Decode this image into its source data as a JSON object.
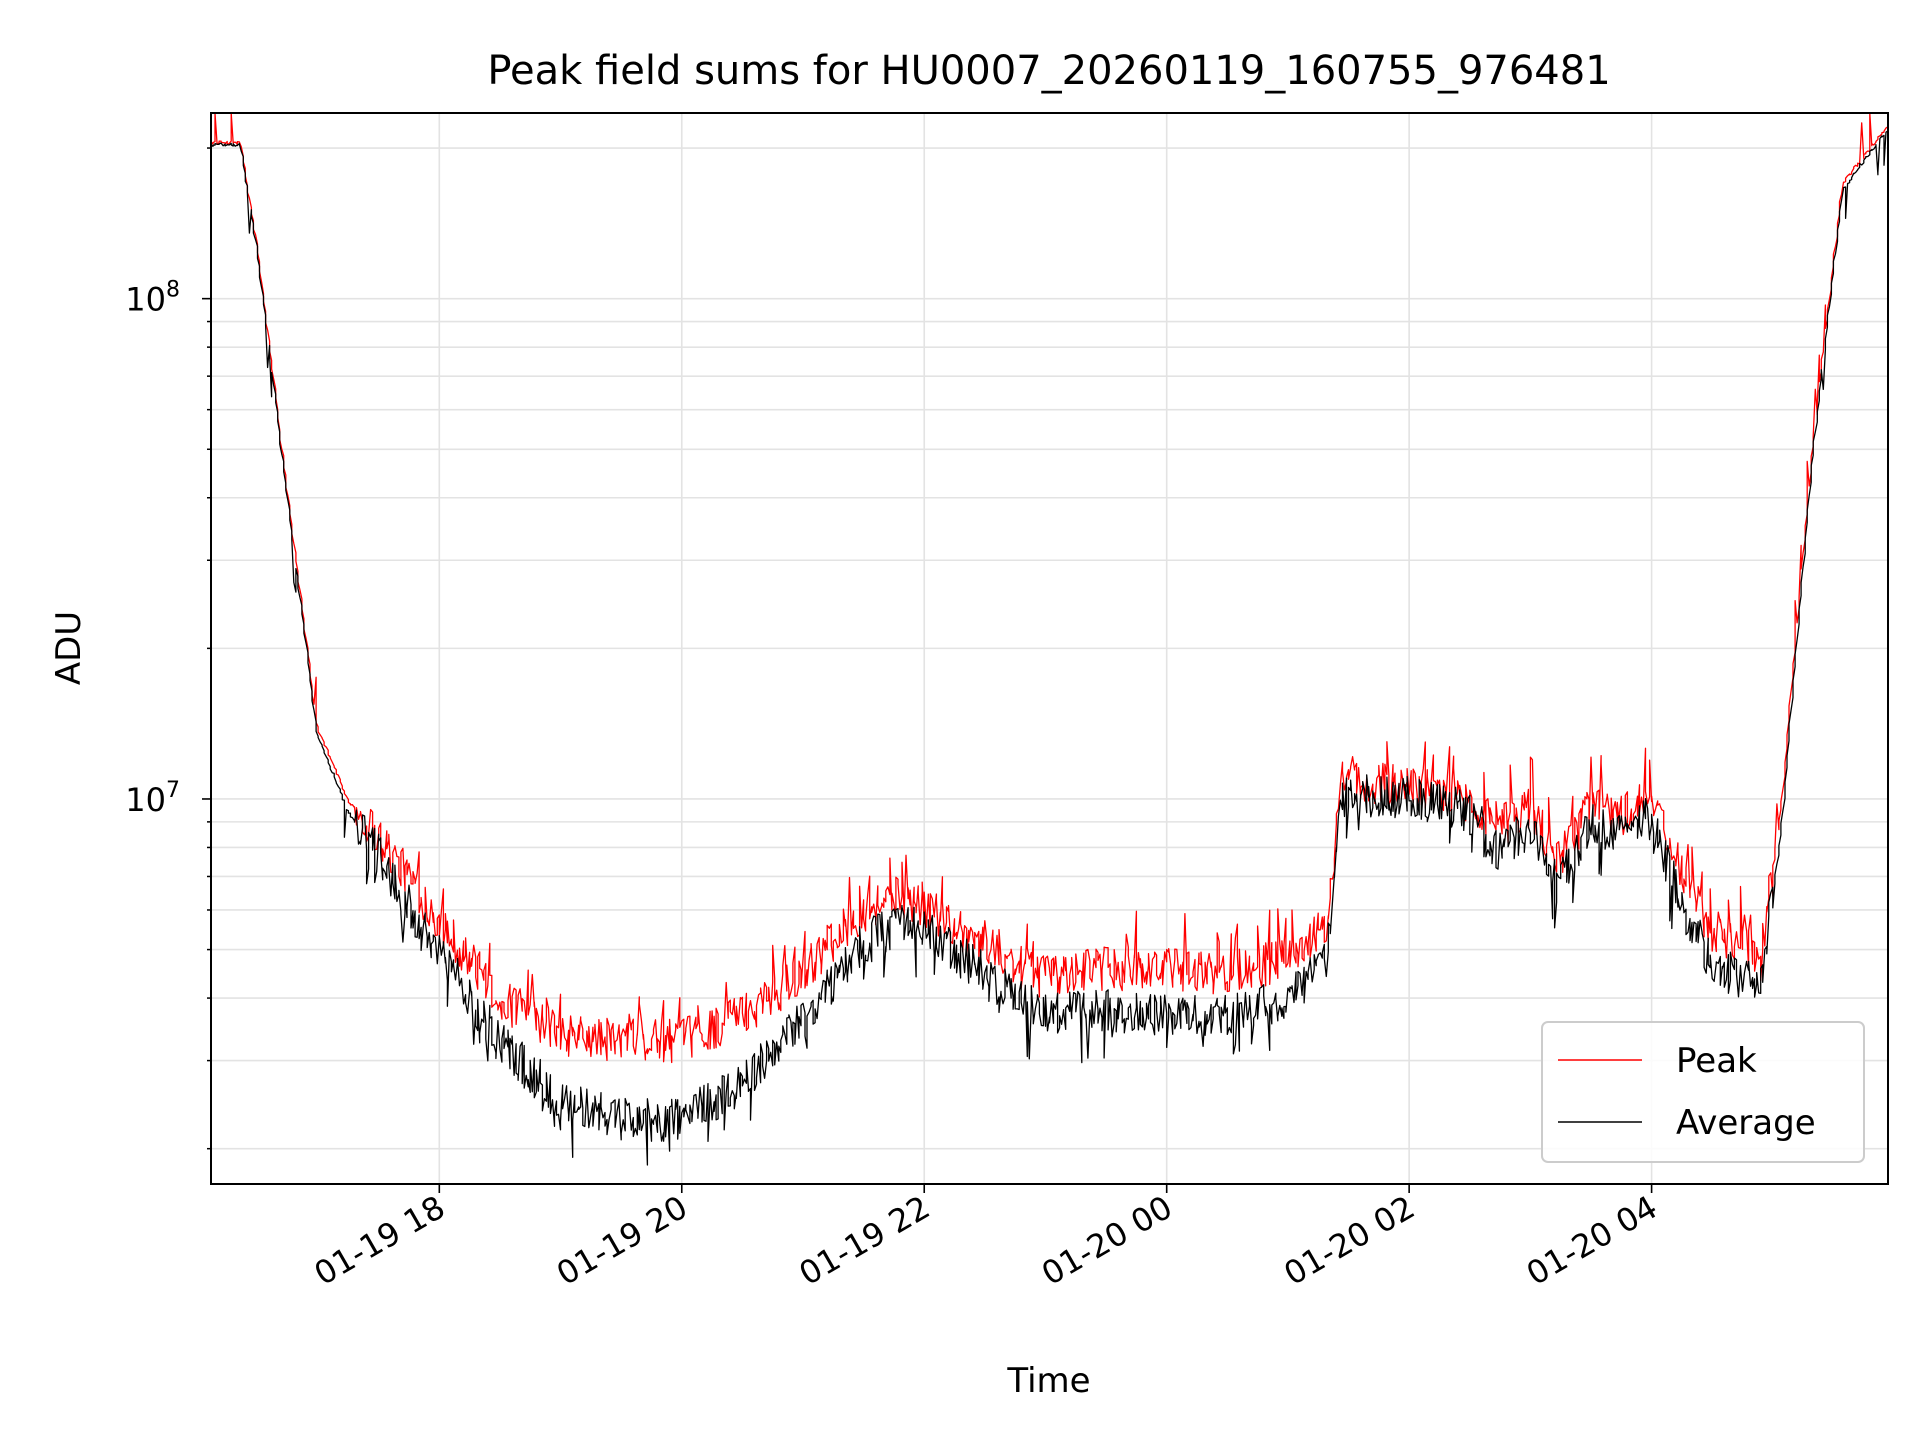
{
  "chart_data": {
    "type": "line",
    "title": "Peak field sums for HU0007_20260119_160755_976481",
    "xlabel": "Time",
    "ylabel": "ADU",
    "yscale": "log",
    "ylim": [
      1700000.0,
      235000000.0
    ],
    "xlim": [
      "2026-01-19 16:07",
      "2026-01-20 05:57"
    ],
    "grid": true,
    "legend_position": "lower-right",
    "x_ticks": [
      {
        "x": "2026-01-19 18:00",
        "label": "01-19 18"
      },
      {
        "x": "2026-01-19 20:00",
        "label": "01-19 20"
      },
      {
        "x": "2026-01-19 22:00",
        "label": "01-19 22"
      },
      {
        "x": "2026-01-20 00:00",
        "label": "01-20 00"
      },
      {
        "x": "2026-01-20 02:00",
        "label": "01-20 02"
      },
      {
        "x": "2026-01-20 04:00",
        "label": "01-20 04"
      }
    ],
    "y_ticks": [
      {
        "value": 10000000,
        "base": "10",
        "exp": "7"
      },
      {
        "value": 100000000,
        "base": "10",
        "exp": "8"
      }
    ],
    "series": [
      {
        "name": "Peak",
        "color": "#ff0000",
        "x": [
          "2026-01-19 16:07",
          "2026-01-19 16:22",
          "2026-01-19 16:30",
          "2026-01-19 16:45",
          "2026-01-19 17:00",
          "2026-01-19 17:15",
          "2026-01-19 17:30",
          "2026-01-19 18:00",
          "2026-01-19 18:30",
          "2026-01-19 19:00",
          "2026-01-19 19:30",
          "2026-01-19 20:00",
          "2026-01-19 20:30",
          "2026-01-19 21:00",
          "2026-01-19 21:30",
          "2026-01-19 21:45",
          "2026-01-19 22:00",
          "2026-01-19 22:30",
          "2026-01-19 23:00",
          "2026-01-19 23:30",
          "2026-01-20 00:00",
          "2026-01-20 00:30",
          "2026-01-20 01:00",
          "2026-01-20 01:20",
          "2026-01-20 01:27",
          "2026-01-20 01:45",
          "2026-01-20 02:00",
          "2026-01-20 02:30",
          "2026-01-20 02:45",
          "2026-01-20 03:00",
          "2026-01-20 03:15",
          "2026-01-20 03:22",
          "2026-01-20 03:30",
          "2026-01-20 03:45",
          "2026-01-20 04:00",
          "2026-01-20 04:15",
          "2026-01-20 04:30",
          "2026-01-20 04:45",
          "2026-01-20 04:55",
          "2026-01-20 05:05",
          "2026-01-20 05:20",
          "2026-01-20 05:35",
          "2026-01-20 05:57"
        ],
        "values": [
          205000000,
          205000000,
          130000000,
          42000000,
          14000000,
          10000000,
          8500000,
          5800000,
          4000000,
          3400000,
          3300000,
          3300000,
          3700000,
          4500000,
          6000000,
          6400000,
          6200000,
          5100000,
          4400000,
          4600000,
          4600000,
          4500000,
          4800000,
          5600000,
          10800000,
          10800000,
          10700000,
          10000000,
          8800000,
          9600000,
          7500000,
          8500000,
          9800000,
          9300000,
          10000000,
          7200000,
          5500000,
          5200000,
          4800000,
          10000000,
          50000000,
          170000000,
          220000000
        ]
      },
      {
        "name": "Average",
        "color": "#000000",
        "x": [
          "2026-01-19 16:07",
          "2026-01-19 16:22",
          "2026-01-19 16:30",
          "2026-01-19 16:45",
          "2026-01-19 17:00",
          "2026-01-19 17:15",
          "2026-01-19 17:30",
          "2026-01-19 18:00",
          "2026-01-19 18:30",
          "2026-01-19 19:00",
          "2026-01-19 19:30",
          "2026-01-19 20:00",
          "2026-01-19 20:30",
          "2026-01-19 21:00",
          "2026-01-19 21:30",
          "2026-01-19 21:45",
          "2026-01-19 22:00",
          "2026-01-19 22:30",
          "2026-01-19 23:00",
          "2026-01-19 23:30",
          "2026-01-20 00:00",
          "2026-01-20 00:30",
          "2026-01-20 01:00",
          "2026-01-20 01:20",
          "2026-01-20 01:27",
          "2026-01-20 01:45",
          "2026-01-20 02:00",
          "2026-01-20 02:30",
          "2026-01-20 02:45",
          "2026-01-20 03:00",
          "2026-01-20 03:15",
          "2026-01-20 03:22",
          "2026-01-20 03:30",
          "2026-01-20 03:45",
          "2026-01-20 04:00",
          "2026-01-20 04:15",
          "2026-01-20 04:30",
          "2026-01-20 04:45",
          "2026-01-20 04:55",
          "2026-01-20 05:05",
          "2026-01-20 05:20",
          "2026-01-20 05:35",
          "2026-01-20 05:57"
        ],
        "values": [
          203000000,
          203000000,
          128000000,
          41000000,
          13500000,
          9500000,
          7800000,
          5000000,
          3300000,
          2500000,
          2300000,
          2300000,
          2700000,
          3600000,
          5200000,
          5600000,
          5500000,
          4500000,
          3700000,
          3800000,
          3700000,
          3700000,
          4000000,
          4800000,
          10200000,
          10200000,
          10100000,
          9500000,
          7800000,
          8800000,
          6800000,
          7800000,
          9000000,
          8600000,
          9400000,
          6200000,
          4700000,
          4400000,
          4200000,
          9000000,
          48000000,
          165000000,
          218000000
        ]
      }
    ]
  }
}
